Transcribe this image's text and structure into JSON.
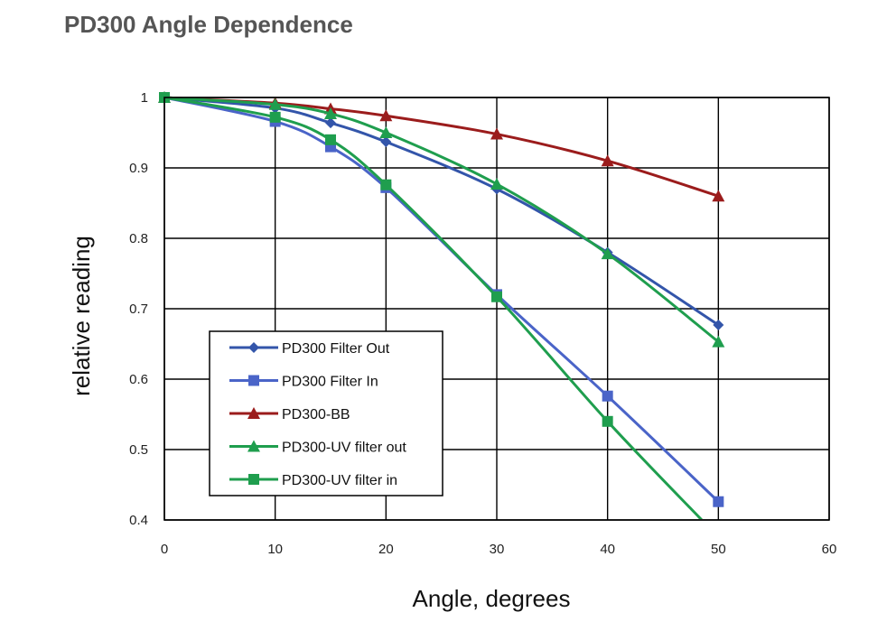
{
  "chart_data": {
    "type": "line",
    "title": "PD300 Angle Dependence",
    "xlabel": "Angle, degrees",
    "ylabel": "relative reading",
    "xlim": [
      0,
      60
    ],
    "ylim": [
      0.4,
      1
    ],
    "x_ticks": [
      0,
      10,
      20,
      30,
      40,
      50,
      60
    ],
    "y_ticks": [
      0.4,
      0.5,
      0.6,
      0.7,
      0.8,
      0.9,
      1
    ],
    "y_tick_labels": [
      "0.4",
      "0.5",
      "0.6",
      "0.7",
      "0.8",
      "0.9",
      "1"
    ],
    "grid": true,
    "legend_position": "lower-left",
    "series": [
      {
        "name": "PD300 Filter Out",
        "color": "#3355aa",
        "marker": "diamond",
        "x": [
          0,
          10,
          15,
          20,
          30,
          40,
          50
        ],
        "y": [
          1.0,
          0.985,
          0.964,
          0.937,
          0.87,
          0.78,
          0.677
        ]
      },
      {
        "name": "PD300 Filter In",
        "color": "#4a64c8",
        "marker": "square",
        "x": [
          0,
          10,
          15,
          20,
          30,
          40,
          50
        ],
        "y": [
          1.0,
          0.966,
          0.93,
          0.872,
          0.72,
          0.576,
          0.426
        ]
      },
      {
        "name": "PD300-BB",
        "color": "#9b1c1c",
        "marker": "triangle",
        "x": [
          0,
          10,
          15,
          20,
          30,
          40,
          50
        ],
        "y": [
          1.0,
          0.992,
          0.984,
          0.974,
          0.948,
          0.91,
          0.86
        ]
      },
      {
        "name": "PD300-UV filter out",
        "color": "#1f9e4e",
        "marker": "triangle",
        "x": [
          0,
          10,
          15,
          20,
          30,
          40,
          50
        ],
        "y": [
          1.0,
          0.99,
          0.977,
          0.95,
          0.877,
          0.778,
          0.653
        ]
      },
      {
        "name": "PD300-UV filter in",
        "color": "#1f9e4e",
        "marker": "square",
        "x": [
          0,
          10,
          15,
          20,
          30,
          40,
          48.5
        ],
        "y": [
          1.0,
          0.972,
          0.94,
          0.876,
          0.717,
          0.54,
          0.4
        ]
      }
    ]
  }
}
